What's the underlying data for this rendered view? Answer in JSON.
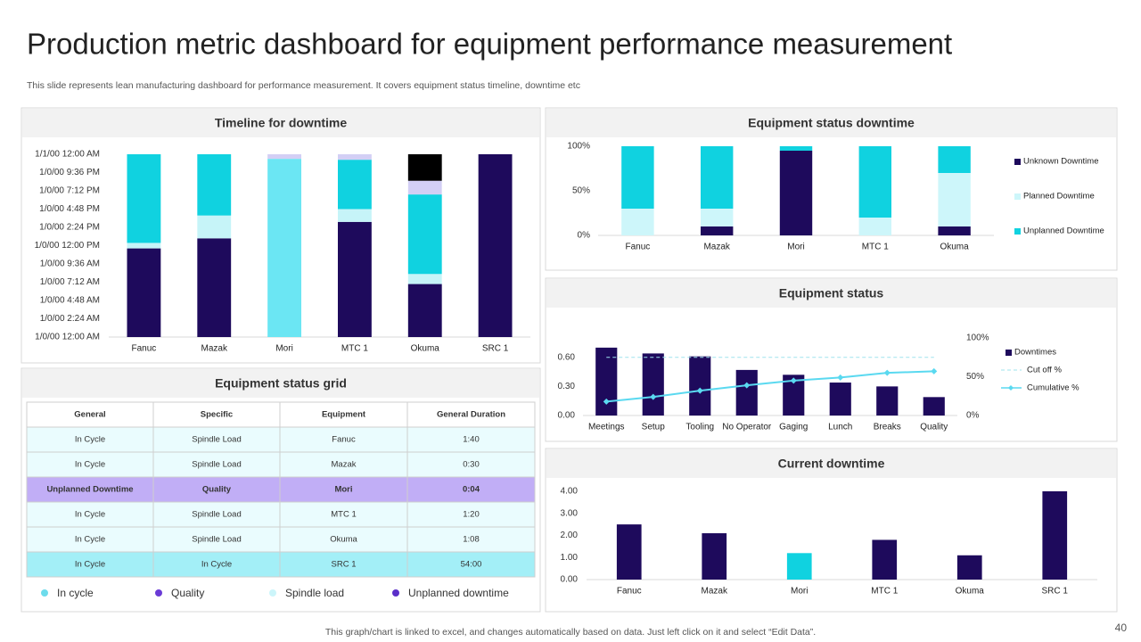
{
  "header": {
    "title": "Production metric dashboard for equipment performance measurement",
    "subtitle": "This slide represents lean manufacturing dashboard for performance measurement. It covers equipment status timeline, downtime etc"
  },
  "chart_data": [
    {
      "type": "bar",
      "title": "Timeline for downtime",
      "stacked": true,
      "categories": [
        "Fanuc",
        "Mazak",
        "Mori",
        "MTC 1",
        "Okuma",
        "SRC 1"
      ],
      "ylim": [
        0,
        1
      ],
      "yticks": [
        {
          "value": 0,
          "label": "1/0/00 12:00 AM"
        },
        {
          "value": 0.1,
          "label": "1/0/00 2:24 AM"
        },
        {
          "value": 0.2,
          "label": "1/0/00 4:48 AM"
        },
        {
          "value": 0.3,
          "label": "1/0/00 7:12 AM"
        },
        {
          "value": 0.4,
          "label": "1/0/00 9:36 AM"
        },
        {
          "value": 0.5,
          "label": "1/0/00 12:00 PM"
        },
        {
          "value": 0.6,
          "label": "1/0/00 2:24 PM"
        },
        {
          "value": 0.7,
          "label": "1/0/00 4:48 PM"
        },
        {
          "value": 0.8,
          "label": "1/0/00 7:12 PM"
        },
        {
          "value": 0.9,
          "label": "1/0/00 9:36 PM"
        },
        {
          "value": 1,
          "label": "1/1/00 12:00 AM"
        }
      ],
      "series": [
        {
          "color": "#1e0a5c",
          "values": [
            0.485,
            0.54,
            0,
            0.63,
            0.29,
            1.0
          ]
        },
        {
          "color": "#c6f4f8",
          "values": [
            0.03,
            0.125,
            0,
            0.07,
            0.055,
            0
          ]
        },
        {
          "color": "#10d2e0",
          "values": [
            0.485,
            0.335,
            0,
            0.27,
            0.435,
            0
          ]
        },
        {
          "color": "#6be6f3",
          "values": [
            0,
            0,
            0.975,
            0,
            0,
            0
          ]
        },
        {
          "color": "#d3cff5",
          "values": [
            0,
            0,
            0.025,
            0.03,
            0.075,
            0
          ]
        },
        {
          "color": "#000000",
          "values": [
            0,
            0,
            0,
            0,
            0.145,
            0
          ]
        }
      ]
    },
    {
      "type": "bar",
      "title": "Equipment status downtime",
      "stacked": true,
      "legend": "right",
      "categories": [
        "Fanuc",
        "Mazak",
        "Mori",
        "MTC 1",
        "Okuma"
      ],
      "ylim": [
        0,
        100
      ],
      "yticks": [
        {
          "value": 0,
          "label": "0%"
        },
        {
          "value": 50,
          "label": "50%"
        },
        {
          "value": 100,
          "label": "100%"
        }
      ],
      "series": [
        {
          "name": "Unknown Downtime",
          "color": "#1e0a5c",
          "values": [
            0,
            10,
            95,
            0,
            10
          ]
        },
        {
          "name": "Planned Downtime",
          "color": "#cdf6fa",
          "values": [
            30,
            20,
            0,
            20,
            60
          ]
        },
        {
          "name": "Unplanned Downtime",
          "color": "#10d2e0",
          "values": [
            70,
            70,
            5,
            80,
            30
          ]
        }
      ]
    },
    {
      "type": "bar",
      "title": "Equipment status",
      "legend": "right",
      "categories": [
        "Meetings",
        "Setup",
        "Tooling",
        "No Operator",
        "Gaging",
        "Lunch",
        "Breaks",
        "Quality"
      ],
      "ylim": [
        0,
        0.8
      ],
      "yticks": [
        {
          "value": 0,
          "label": "0.00"
        },
        {
          "value": 0.3,
          "label": "0.30"
        },
        {
          "value": 0.6,
          "label": "0.60"
        }
      ],
      "y2lim": [
        0,
        100
      ],
      "y2ticks": [
        {
          "value": 0,
          "label": "0%"
        },
        {
          "value": 50,
          "label": "50%"
        },
        {
          "value": 100,
          "label": "100%"
        }
      ],
      "series": [
        {
          "name": "Downtimes",
          "color": "#1e0a5c",
          "values": [
            0.7,
            0.64,
            0.61,
            0.47,
            0.42,
            0.34,
            0.3,
            0.19
          ]
        },
        {
          "name": "Cut off %",
          "type": "line",
          "axis": "y2",
          "dashed": true,
          "color": "#9fe3ee",
          "values": [
            75,
            75,
            75,
            75,
            75,
            75,
            75,
            75
          ]
        },
        {
          "name": "Cumulative %",
          "type": "line",
          "axis": "y2",
          "marker": "diamond",
          "color": "#5ad9f0",
          "values": [
            18,
            24,
            32,
            39,
            45,
            49,
            55,
            57
          ]
        }
      ]
    },
    {
      "type": "bar",
      "title": "Current downtime",
      "categories": [
        "Fanuc",
        "Mazak",
        "Mori",
        "MTC 1",
        "Okuma",
        "SRC 1"
      ],
      "values": [
        2.5,
        2.1,
        1.2,
        1.8,
        1.1,
        4.0
      ],
      "colors": [
        "#1e0a5c",
        "#1e0a5c",
        "#10d2e0",
        "#1e0a5c",
        "#1e0a5c",
        "#1e0a5c"
      ],
      "ylim": [
        0,
        4
      ],
      "yticks": [
        {
          "value": 0,
          "label": "0.00"
        },
        {
          "value": 1,
          "label": "1.00"
        },
        {
          "value": 2,
          "label": "2.00"
        },
        {
          "value": 3,
          "label": "3.00"
        },
        {
          "value": 4,
          "label": "4.00"
        }
      ]
    }
  ],
  "table": {
    "title": "Equipment status grid",
    "columns": [
      "General",
      "Specific",
      "Equipment",
      "General Duration"
    ],
    "rows": [
      [
        "In Cycle",
        "Spindle Load",
        "Fanuc",
        "1:40"
      ],
      [
        "In Cycle",
        "Spindle Load",
        "Mazak",
        "0:30"
      ],
      [
        "Unplanned Downtime",
        "Quality",
        "Mori",
        "0:04"
      ],
      [
        "In Cycle",
        "Spindle Load",
        "MTC 1",
        "1:20"
      ],
      [
        "In Cycle",
        "Spindle Load",
        "Okuma",
        "1:08"
      ],
      [
        "In Cycle",
        "In Cycle",
        "SRC 1",
        "54:00"
      ]
    ],
    "legend": [
      {
        "label": "In cycle",
        "color": "#6ddcec"
      },
      {
        "label": "Quality",
        "color": "#6a3bd6"
      },
      {
        "label": "Spindle load",
        "color": "#ccf5fa"
      },
      {
        "label": "Unplanned downtime",
        "color": "#5b2fc9"
      }
    ]
  },
  "footer": {
    "note": "This graph/chart is linked to excel,  and changes automatically based on data. Just left click on it and select “Edit Data”.",
    "page": "40"
  }
}
